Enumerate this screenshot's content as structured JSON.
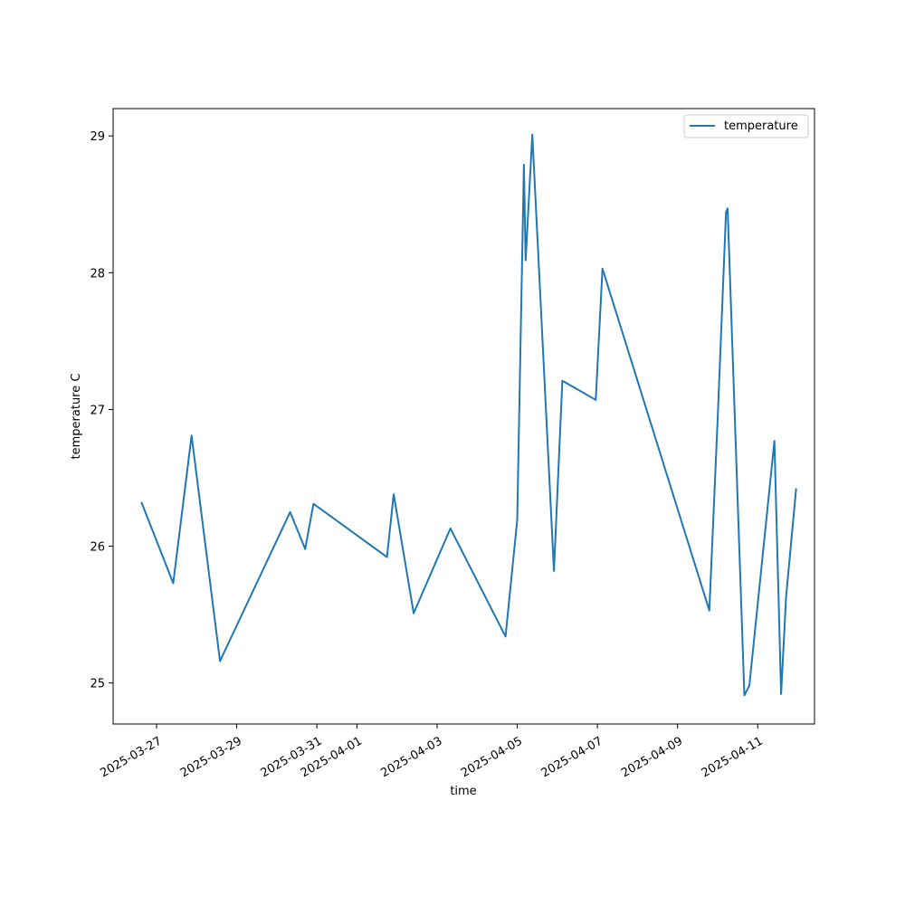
{
  "chart_data": {
    "type": "line",
    "title": "",
    "xlabel": "time",
    "ylabel": "temperature C",
    "x_is_date": true,
    "xlim": [
      "2025-03-25T22:00",
      "2025-04-12T10:00"
    ],
    "ylim": [
      24.7,
      29.2
    ],
    "x_ticks": [
      "2025-03-27",
      "2025-03-29",
      "2025-03-31",
      "2025-04-01",
      "2025-04-03",
      "2025-04-05",
      "2025-04-07",
      "2025-04-09",
      "2025-04-11"
    ],
    "y_ticks": [
      25,
      26,
      27,
      28,
      29
    ],
    "grid": false,
    "legend_position": "top-right",
    "series": [
      {
        "name": "temperature",
        "color": "#1f77b4",
        "points": [
          {
            "x": "2025-03-26T15:00",
            "y": 26.32
          },
          {
            "x": "2025-03-27T10:00",
            "y": 25.73
          },
          {
            "x": "2025-03-27T21:00",
            "y": 26.81
          },
          {
            "x": "2025-03-28T14:00",
            "y": 25.16
          },
          {
            "x": "2025-03-30T08:00",
            "y": 26.25
          },
          {
            "x": "2025-03-30T17:00",
            "y": 25.98
          },
          {
            "x": "2025-03-30T22:00",
            "y": 26.31
          },
          {
            "x": "2025-04-01T18:00",
            "y": 25.92
          },
          {
            "x": "2025-04-01T22:00",
            "y": 26.38
          },
          {
            "x": "2025-04-02T10:00",
            "y": 25.51
          },
          {
            "x": "2025-04-03T08:00",
            "y": 26.13
          },
          {
            "x": "2025-04-04T17:00",
            "y": 25.34
          },
          {
            "x": "2025-04-05T00:00",
            "y": 26.19
          },
          {
            "x": "2025-04-05T04:00",
            "y": 28.79
          },
          {
            "x": "2025-04-05T05:00",
            "y": 28.09
          },
          {
            "x": "2025-04-05T09:00",
            "y": 29.01
          },
          {
            "x": "2025-04-05T22:00",
            "y": 25.82
          },
          {
            "x": "2025-04-06T03:00",
            "y": 27.21
          },
          {
            "x": "2025-04-06T23:00",
            "y": 27.07
          },
          {
            "x": "2025-04-07T03:00",
            "y": 28.03
          },
          {
            "x": "2025-04-09T19:00",
            "y": 25.53
          },
          {
            "x": "2025-04-10T00:00",
            "y": 26.93
          },
          {
            "x": "2025-04-10T05:00",
            "y": 28.44
          },
          {
            "x": "2025-04-10T06:00",
            "y": 28.47
          },
          {
            "x": "2025-04-10T16:00",
            "y": 24.91
          },
          {
            "x": "2025-04-10T19:00",
            "y": 24.98
          },
          {
            "x": "2025-04-11T10:00",
            "y": 26.77
          },
          {
            "x": "2025-04-11T14:00",
            "y": 24.92
          },
          {
            "x": "2025-04-11T17:00",
            "y": 25.63
          },
          {
            "x": "2025-04-11T23:00",
            "y": 26.42
          }
        ]
      }
    ]
  }
}
